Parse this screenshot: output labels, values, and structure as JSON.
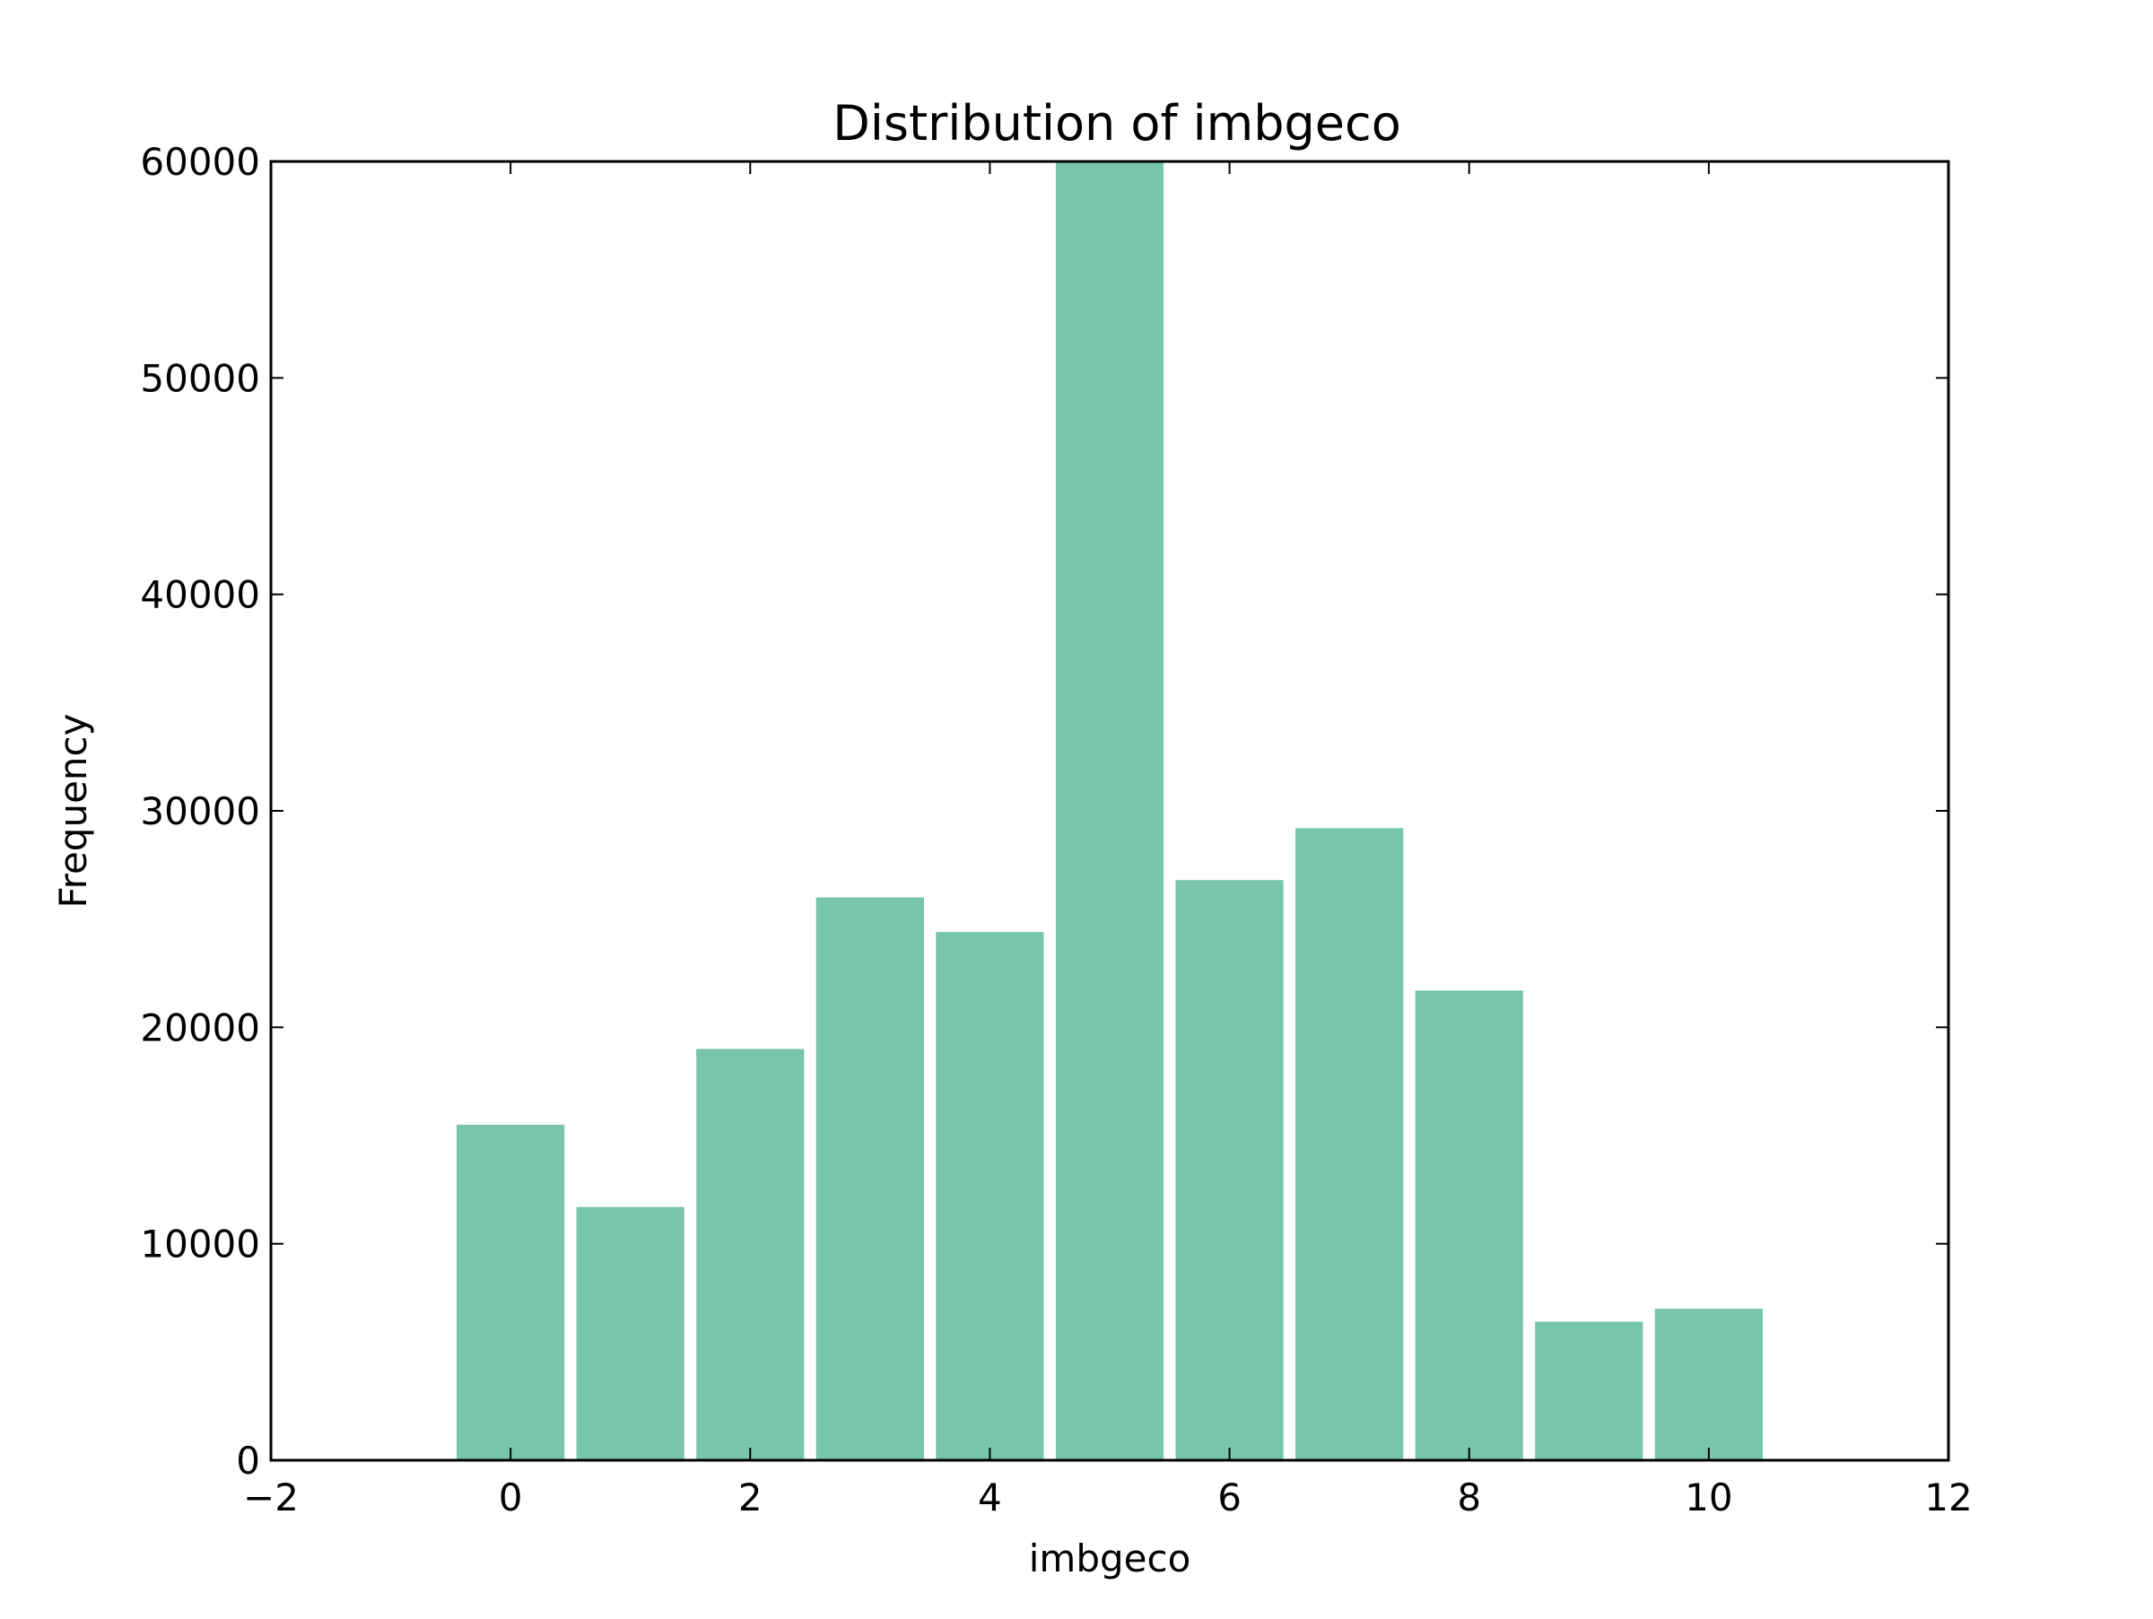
{
  "chart_data": {
    "type": "bar",
    "title": "Distribution of imbgeco",
    "xlabel": "imbgeco",
    "ylabel": "Frequency",
    "categories": [
      0,
      1,
      2,
      3,
      4,
      5,
      6,
      7,
      8,
      9,
      10
    ],
    "values": [
      15500,
      11700,
      19000,
      26000,
      24400,
      60000,
      26800,
      29200,
      21700,
      6400,
      7000
    ],
    "xlim": [
      -2,
      12
    ],
    "ylim": [
      0,
      60000
    ],
    "xticks": [
      "−2",
      "0",
      "2",
      "4",
      "6",
      "8",
      "10",
      "12"
    ],
    "yticks": [
      "0",
      "10000",
      "20000",
      "30000",
      "40000",
      "50000",
      "60000"
    ],
    "bar_color": "#78c4ad",
    "grid": false,
    "legend": "none"
  }
}
